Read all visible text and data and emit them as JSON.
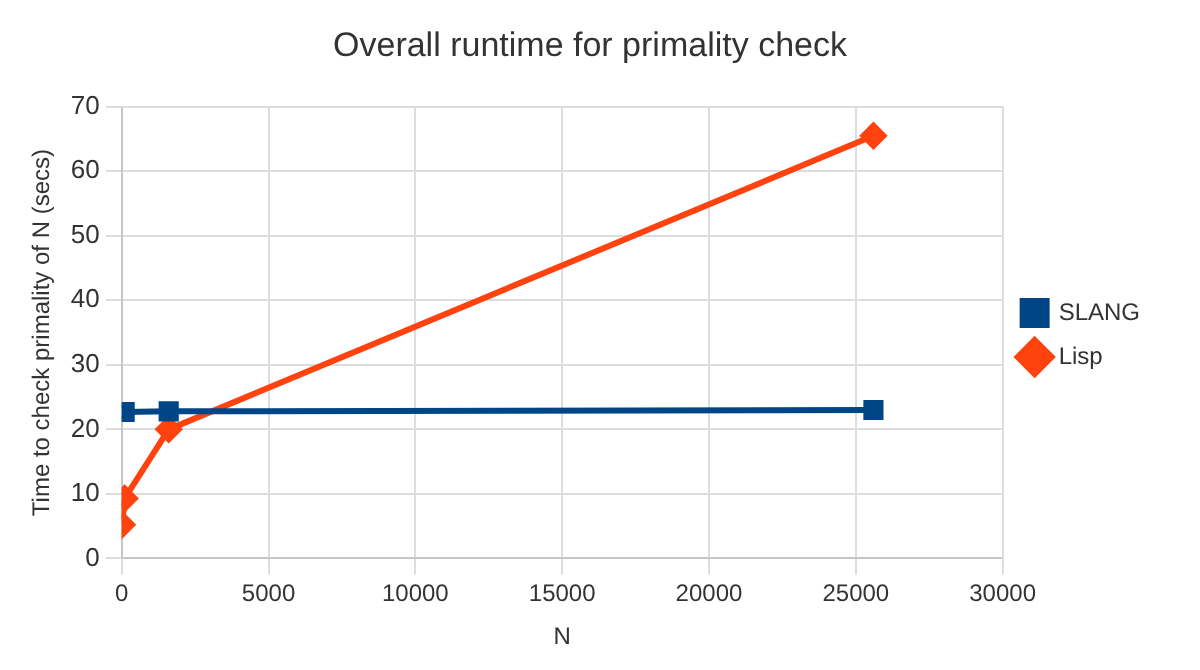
{
  "chart_data": {
    "type": "line",
    "title": "Overall runtime for primality check",
    "xlabel": "N",
    "ylabel": "Time to check primality of N (secs)",
    "xlim": [
      0,
      30000
    ],
    "xticks": [
      0,
      5000,
      10000,
      15000,
      20000,
      25000,
      30000
    ],
    "ylim": [
      0,
      70
    ],
    "yticks": [
      0,
      10,
      20,
      30,
      40,
      50,
      60,
      70
    ],
    "grid": true,
    "legend": "right",
    "line_style": "solid",
    "series": [
      {
        "name": "SLANG",
        "color": "#004586",
        "marker": "square",
        "x": [
          100,
          1600,
          25600
        ],
        "values": [
          22.7,
          22.8,
          23.0
        ]
      },
      {
        "name": "Lisp",
        "color": "#ff420e",
        "marker": "diamond",
        "x": [
          10,
          100,
          1600,
          25600
        ],
        "values": [
          5.2,
          9.3,
          20,
          65.5
        ]
      }
    ]
  }
}
